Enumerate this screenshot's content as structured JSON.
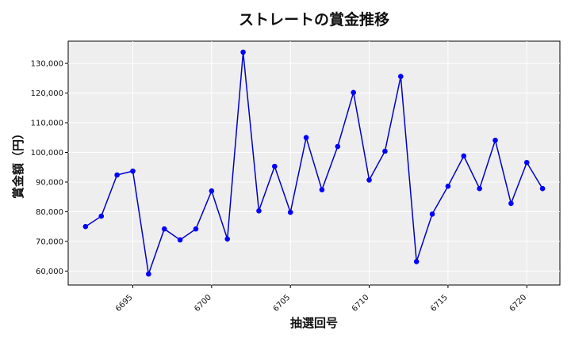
{
  "chart_data": {
    "type": "line",
    "title": "ストレートの賞金推移",
    "xlabel": "抽選回号",
    "ylabel": "賞金額（円）",
    "x": [
      6692,
      6693,
      6694,
      6695,
      6696,
      6697,
      6698,
      6699,
      6700,
      6701,
      6702,
      6703,
      6704,
      6705,
      6706,
      6707,
      6708,
      6709,
      6710,
      6711,
      6712,
      6713,
      6714,
      6715,
      6716,
      6717,
      6718,
      6719,
      6720,
      6721
    ],
    "series": [
      {
        "values": [
          75000,
          78500,
          92400,
          93700,
          59000,
          74200,
          70500,
          74200,
          87000,
          70800,
          133800,
          80300,
          95300,
          79800,
          105000,
          87400,
          102000,
          120200,
          90700,
          100400,
          125600,
          63200,
          79200,
          88600,
          98800,
          87800,
          104100,
          82800,
          96600,
          87800
        ]
      }
    ],
    "x_ticks": [
      "6695",
      "6700",
      "6705",
      "6710",
      "6715",
      "6720"
    ],
    "y_ticks": [
      "60,000",
      "70,000",
      "80,000",
      "90,000",
      "100,000",
      "110,000",
      "120,000",
      "130,000"
    ],
    "xlim": [
      6690.9,
      6722.1
    ],
    "ylim": [
      55300,
      137500
    ],
    "grid": true,
    "line_color": "#0000cc",
    "marker_color": "#0000ff",
    "plot_background": "#eeeeee"
  }
}
